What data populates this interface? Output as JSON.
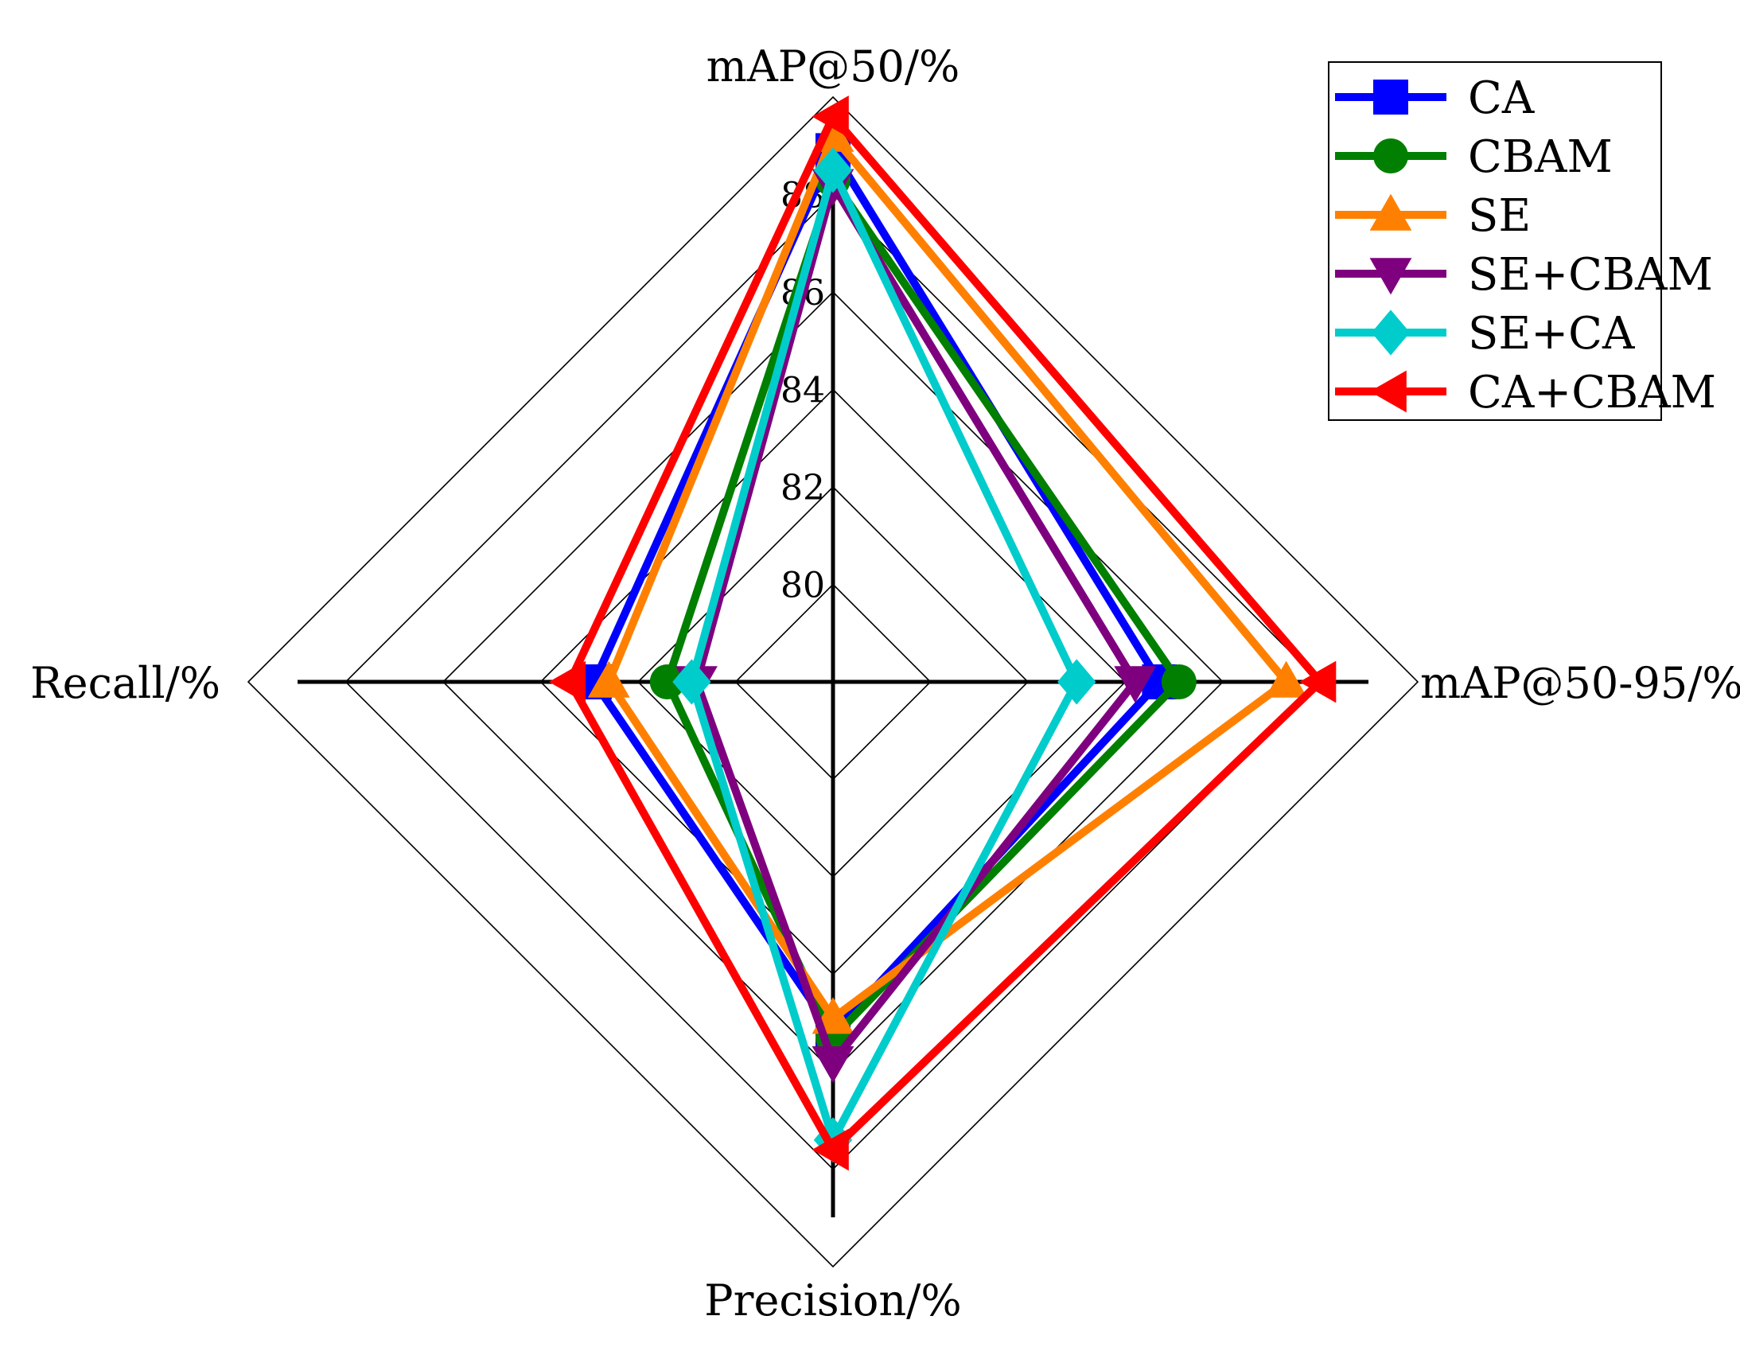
{
  "chart_data": {
    "type": "radar",
    "axes": [
      "mAP@50/%",
      "mAP@50-95/%",
      "Precision/%",
      "Recall/%"
    ],
    "ticks": [
      "80",
      "82",
      "84",
      "86",
      "88"
    ],
    "range": [
      78,
      90
    ],
    "grid": true,
    "legend_position": "top-right",
    "series": [
      {
        "name": "CA",
        "color": "#0000ff",
        "marker": "square",
        "values": [
          88.9,
          84.7,
          85.2,
          82.9
        ]
      },
      {
        "name": "CBAM",
        "color": "#007f00",
        "marker": "circle",
        "values": [
          88.3,
          85.1,
          85.3,
          81.4
        ]
      },
      {
        "name": "SE",
        "color": "#ff8000",
        "marker": "triangle-up",
        "values": [
          89.2,
          87.3,
          84.9,
          82.6
        ]
      },
      {
        "name": "SE+CBAM",
        "color": "#7f007f",
        "marker": "triangle-down",
        "values": [
          88.2,
          84.2,
          85.8,
          80.8
        ]
      },
      {
        "name": "SE+CA",
        "color": "#00cccc",
        "marker": "diamond",
        "values": [
          88.5,
          83.0,
          87.4,
          80.9
        ]
      },
      {
        "name": "CA+CBAM",
        "color": "#ff0000",
        "marker": "triangle-left",
        "values": [
          89.6,
          88.0,
          87.6,
          83.4
        ]
      }
    ]
  }
}
